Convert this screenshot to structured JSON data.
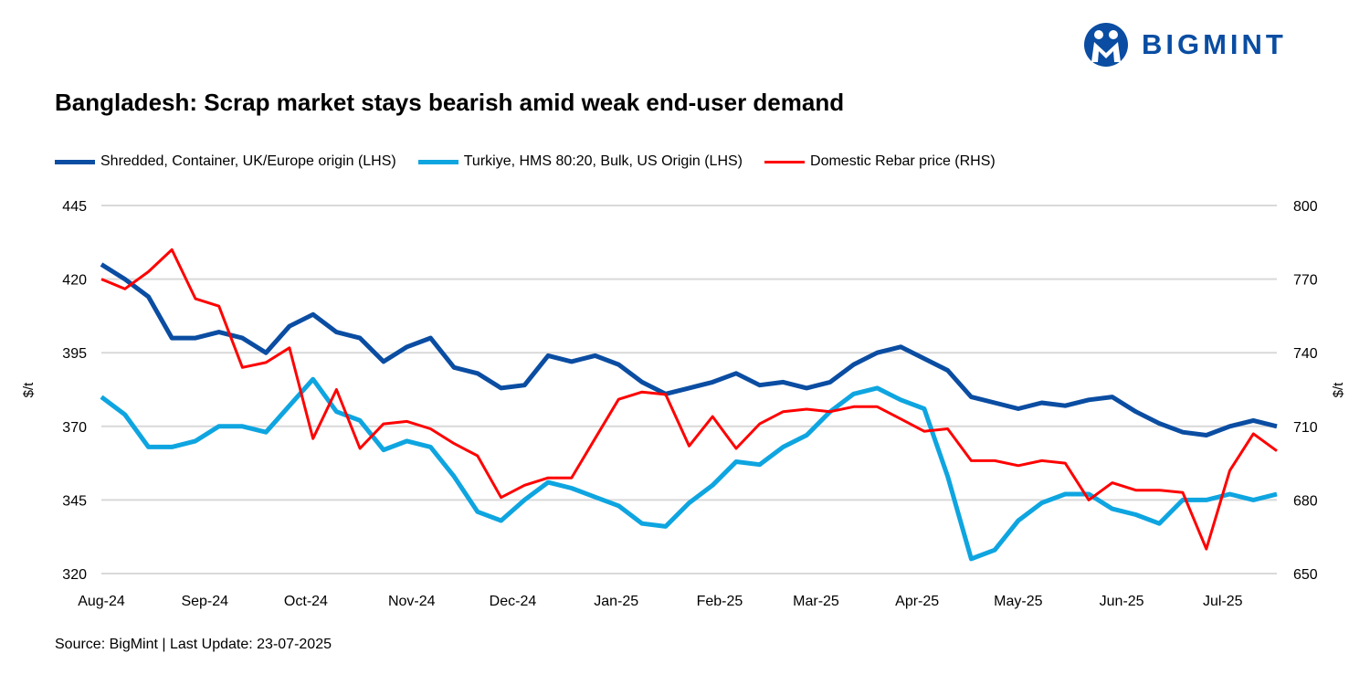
{
  "logo": {
    "text": "BIGMINT",
    "color": "#0a4da2"
  },
  "source": "Source: BigMint | Last Update: 23-07-2025",
  "chart_data": {
    "type": "line",
    "title": "Bangladesh: Scrap market stays bearish amid weak end-user demand",
    "ylabel_left": "$/t",
    "ylabel_right": "$/t",
    "ylim_left": [
      320,
      445
    ],
    "ylim_right": [
      650,
      800
    ],
    "yticks_left": [
      320,
      345,
      370,
      395,
      420,
      445
    ],
    "yticks_right": [
      650,
      680,
      710,
      740,
      770,
      800
    ],
    "x_tick_labels": [
      "Aug-24",
      "Sep-24",
      "Oct-24",
      "Nov-24",
      "Dec-24",
      "Jan-25",
      "Feb-25",
      "Mar-25",
      "Apr-25",
      "May-25",
      "Jun-25",
      "Jul-25"
    ],
    "x_tick_index": [
      0,
      4.4,
      8.7,
      13.2,
      17.5,
      21.9,
      26.3,
      30.4,
      34.7,
      39,
      43.4,
      47.7
    ],
    "grid": true,
    "legend_position": "top",
    "series": [
      {
        "name": "Shredded, Container, UK/Europe origin (LHS)",
        "axis": "left",
        "color": "#0a4da2",
        "values": [
          425,
          420,
          414,
          400,
          400,
          402,
          400,
          395,
          404,
          408,
          402,
          400,
          392,
          397,
          400,
          390,
          388,
          383,
          384,
          394,
          392,
          394,
          391,
          385,
          381,
          383,
          385,
          388,
          384,
          385,
          383,
          385,
          391,
          395,
          397,
          393,
          389,
          380,
          378,
          376,
          378,
          377,
          379,
          380,
          375,
          371,
          368,
          367,
          370,
          372,
          370
        ]
      },
      {
        "name": "Turkiye, HMS 80:20, Bulk, US Origin (LHS)",
        "axis": "left",
        "color": "#0ea5e0",
        "values": [
          380,
          374,
          363,
          363,
          365,
          370,
          370,
          368,
          377,
          386,
          375,
          372,
          362,
          365,
          363,
          353,
          341,
          338,
          345,
          351,
          349,
          346,
          343,
          337,
          336,
          344,
          350,
          358,
          357,
          363,
          367,
          375,
          381,
          383,
          379,
          376,
          353,
          325,
          328,
          338,
          344,
          347,
          347,
          342,
          340,
          337,
          345,
          345,
          347,
          345,
          347
        ]
      },
      {
        "name": "Domestic Rebar price (RHS)",
        "axis": "right",
        "color": "#ff0000",
        "values": [
          770,
          766,
          773,
          782,
          762,
          759,
          734,
          736,
          742,
          705,
          725,
          701,
          711,
          712,
          709,
          703,
          698,
          681,
          686,
          689,
          689,
          705,
          721,
          724,
          723,
          702,
          714,
          701,
          711,
          716,
          717,
          716,
          718,
          718,
          713,
          708,
          709,
          696,
          696,
          694,
          696,
          695,
          680,
          687,
          684,
          684,
          683,
          660,
          692,
          707,
          700
        ]
      }
    ]
  }
}
